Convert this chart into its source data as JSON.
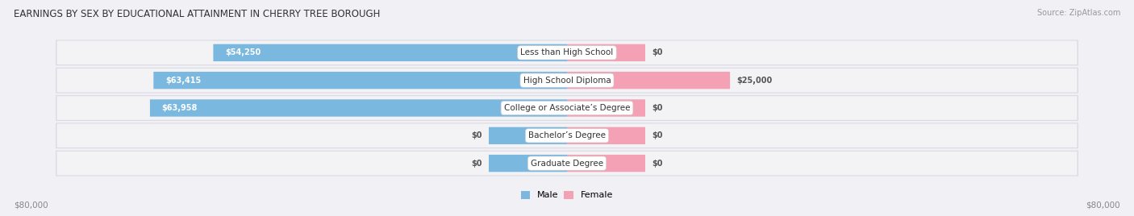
{
  "title": "EARNINGS BY SEX BY EDUCATIONAL ATTAINMENT IN CHERRY TREE BOROUGH",
  "source": "Source: ZipAtlas.com",
  "categories": [
    "Less than High School",
    "High School Diploma",
    "College or Associate’s Degree",
    "Bachelor’s Degree",
    "Graduate Degree"
  ],
  "male_values": [
    54250,
    63415,
    63958,
    0,
    0
  ],
  "female_values": [
    0,
    25000,
    0,
    0,
    0
  ],
  "male_label_texts": [
    "$54,250",
    "$63,415",
    "$63,958",
    "$0",
    "$0"
  ],
  "female_label_texts": [
    "$0",
    "$25,000",
    "$0",
    "$0",
    "$0"
  ],
  "male_color": "#7bb8e0",
  "female_color": "#f4a0b5",
  "male_legend": "Male",
  "female_legend": "Female",
  "x_max": 80000,
  "x_min": -80000,
  "zero_stub": 12000,
  "axis_label_left": "$80,000",
  "axis_label_right": "$80,000",
  "bg_color": "#f0f0f5",
  "row_colors": [
    "#e4e4ed",
    "#dcdce8"
  ],
  "title_fontsize": 8.5,
  "source_fontsize": 7,
  "bar_label_fontsize": 7,
  "category_fontsize": 7.5,
  "axis_fontsize": 7.5,
  "legend_fontsize": 8
}
